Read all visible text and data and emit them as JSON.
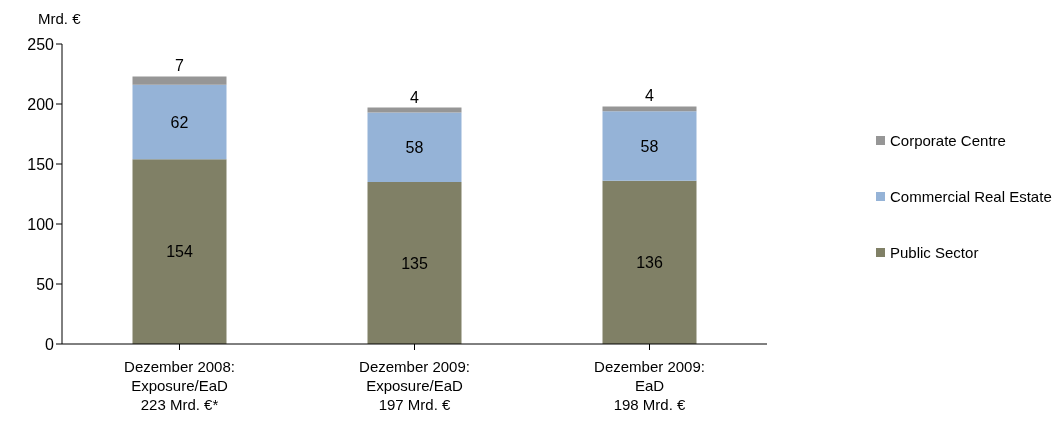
{
  "chart_data": {
    "type": "bar",
    "stacked": true,
    "ylabel": "Mrd. €",
    "categories": [
      "Dezember 2008:\nExposure/EaD\n223 Mrd. €*",
      "Dezember 2009:\nExposure/EaD\n197 Mrd. €",
      "Dezember 2009:\nEaD\n198 Mrd. €"
    ],
    "series": [
      {
        "name": "Public Sector",
        "color": "#808066",
        "values": [
          154,
          135,
          136
        ]
      },
      {
        "name": "Commercial Real Estate",
        "color": "#95b3d7",
        "values": [
          62,
          58,
          58
        ]
      },
      {
        "name": "Corporate Centre",
        "color": "#969696",
        "values": [
          7,
          4,
          4
        ]
      }
    ],
    "ylim": [
      0,
      250
    ],
    "yticks": [
      0,
      50,
      100,
      150,
      200,
      250
    ],
    "grid": false,
    "legend": "right",
    "data_labels": true
  }
}
